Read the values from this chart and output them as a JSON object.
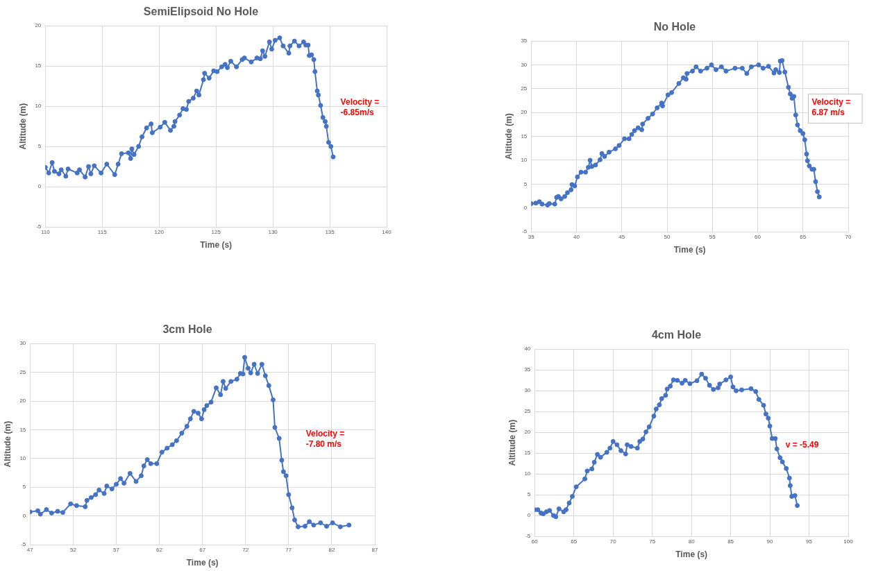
{
  "chart_data": [
    {
      "type": "line",
      "title": "SemiElipsoid No Hole",
      "xlabel": "Time (s)",
      "ylabel": "Altitude (m)",
      "xlim": [
        110,
        140
      ],
      "xticks": [
        110,
        115,
        120,
        125,
        130,
        135,
        140
      ],
      "ylim": [
        -5,
        20
      ],
      "yticks": [
        -5,
        0,
        5,
        10,
        15,
        20
      ],
      "grid": true,
      "legend": false,
      "marker": "circle",
      "line_style": "solid",
      "annotations": [
        "Velocity = -6.85m/s"
      ],
      "series": [
        {
          "color": "#4472c4",
          "x": [
            110.0,
            110.3,
            110.6,
            110.8,
            111.2,
            111.4,
            111.8,
            112.0,
            112.8,
            113.0,
            113.5,
            113.8,
            114.0,
            114.3,
            114.9,
            115.4,
            116.1,
            116.4,
            116.7,
            117.3,
            117.5,
            117.6,
            117.8,
            118.2,
            118.5,
            118.9,
            119.3,
            119.4,
            120.1,
            120.5,
            121.0,
            121.3,
            121.4,
            121.8,
            122.1,
            122.4,
            122.6,
            123.0,
            123.3,
            123.5,
            123.9,
            124.0,
            124.4,
            124.8,
            125.1,
            125.5,
            125.8,
            126.0,
            126.3,
            126.8,
            127.3,
            127.5,
            128.1,
            128.6,
            128.9,
            129.1,
            129.3,
            129.7,
            129.9,
            130.2,
            130.6,
            130.9,
            131.4,
            131.5,
            131.9,
            132.3,
            132.7,
            132.9,
            133.1,
            133.2,
            133.4,
            133.6,
            133.7,
            133.9,
            134.0,
            134.2,
            134.4,
            134.6,
            134.7,
            134.9,
            135.1,
            135.3
          ],
          "values": [
            2.4,
            1.7,
            3.0,
            1.9,
            1.6,
            2.1,
            1.3,
            2.2,
            1.7,
            2.1,
            1.2,
            2.5,
            1.6,
            2.6,
            1.7,
            2.8,
            1.5,
            2.8,
            4.1,
            4.2,
            3.5,
            4.7,
            4.0,
            5.0,
            6.2,
            7.3,
            7.8,
            6.7,
            7.4,
            8.0,
            7.0,
            7.5,
            8.1,
            8.9,
            9.7,
            9.6,
            10.6,
            11.0,
            11.9,
            11.4,
            13.3,
            14.1,
            13.5,
            14.4,
            14.3,
            14.9,
            15.2,
            14.8,
            15.6,
            14.9,
            15.8,
            16.0,
            15.5,
            16.0,
            15.9,
            16.9,
            16.2,
            18.0,
            17.1,
            18.2,
            18.5,
            17.5,
            16.6,
            17.5,
            18.1,
            17.5,
            18.0,
            17.6,
            17.6,
            16.3,
            16.4,
            15.8,
            14.3,
            11.9,
            11.4,
            10.1,
            8.6,
            8.1,
            7.5,
            5.5,
            5.0,
            3.7
          ]
        }
      ]
    },
    {
      "type": "line",
      "title": "No Hole",
      "xlabel": "Time (s)",
      "ylabel": "Altitude (m)",
      "xlim": [
        35,
        70
      ],
      "xticks": [
        35,
        40,
        45,
        50,
        55,
        60,
        65,
        70
      ],
      "ylim": [
        -5,
        35
      ],
      "yticks": [
        -5,
        0,
        5,
        10,
        15,
        20,
        25,
        30,
        35
      ],
      "grid": true,
      "legend": false,
      "marker": "circle",
      "line_style": "solid",
      "annotations": [
        "Velocity = 6.87 m/s"
      ],
      "series": [
        {
          "color": "#4472c4",
          "x": [
            35.0,
            35.5,
            35.9,
            36.2,
            36.8,
            37.0,
            37.6,
            37.8,
            38.0,
            38.3,
            38.7,
            39.0,
            39.4,
            39.5,
            39.8,
            40.1,
            40.5,
            41.0,
            41.3,
            41.5,
            41.7,
            42.1,
            42.6,
            42.8,
            43.1,
            43.6,
            44.3,
            44.7,
            45.3,
            45.8,
            46.1,
            46.4,
            46.8,
            47.2,
            47.3,
            47.9,
            48.4,
            48.9,
            49.4,
            49.5,
            50.1,
            50.5,
            51.3,
            51.8,
            52.1,
            52.2,
            52.8,
            53.2,
            53.7,
            54.4,
            54.9,
            55.4,
            56.0,
            56.5,
            57.5,
            58.3,
            58.8,
            59.3,
            60.1,
            60.6,
            61.2,
            61.8,
            62.0,
            62.4,
            62.5,
            62.7,
            63.0,
            63.4,
            63.6,
            63.8,
            64.0,
            64.2,
            64.4,
            64.7,
            65.0,
            65.2,
            65.4,
            65.5,
            65.7,
            66.0,
            66.2,
            66.4,
            66.6,
            66.8
          ],
          "values": [
            0.9,
            1.0,
            1.3,
            0.8,
            0.6,
            0.9,
            0.8,
            2.2,
            2.4,
            1.9,
            2.4,
            3.2,
            3.8,
            4.9,
            4.6,
            6.5,
            7.5,
            7.5,
            8.5,
            10.0,
            8.7,
            9.0,
            10.1,
            11.4,
            10.8,
            11.7,
            12.4,
            13.1,
            14.5,
            14.5,
            15.4,
            16.2,
            16.8,
            16.4,
            17.6,
            18.8,
            19.7,
            21.0,
            22.0,
            21.4,
            23.7,
            24.2,
            26.1,
            27.3,
            27.0,
            28.2,
            28.7,
            29.6,
            28.7,
            29.3,
            30.0,
            29.0,
            29.6,
            28.7,
            29.3,
            29.3,
            28.2,
            29.6,
            30.0,
            29.3,
            29.7,
            28.3,
            29.0,
            28.4,
            30.8,
            30.9,
            28.5,
            25.3,
            23.9,
            23.0,
            23.4,
            19.5,
            17.4,
            16.2,
            15.6,
            14.3,
            11.3,
            9.9,
            8.8,
            8.1,
            8.1,
            5.5,
            3.4,
            2.3
          ]
        }
      ]
    },
    {
      "type": "line",
      "title": "3cm Hole",
      "xlabel": "Time (s)",
      "ylabel": "Altitude (m)",
      "xlim": [
        47,
        87
      ],
      "xticks": [
        47,
        52,
        57,
        62,
        67,
        72,
        77,
        82,
        87
      ],
      "ylim": [
        -5,
        30
      ],
      "yticks": [
        -5,
        0,
        5,
        10,
        15,
        20,
        25,
        30
      ],
      "grid": true,
      "legend": false,
      "marker": "circle",
      "line_style": "solid",
      "annotations": [
        "Velocity = -7.80 m/s"
      ],
      "series": [
        {
          "color": "#4472c4",
          "x": [
            47.0,
            47.9,
            48.2,
            48.9,
            49.5,
            50.2,
            50.8,
            51.7,
            52.4,
            53.4,
            53.6,
            54.1,
            54.6,
            55.0,
            55.6,
            55.9,
            56.5,
            57.0,
            57.5,
            57.9,
            58.6,
            59.3,
            59.9,
            60.2,
            60.6,
            61.0,
            61.7,
            62.3,
            62.9,
            63.5,
            64.0,
            64.6,
            65.2,
            65.6,
            66.0,
            66.5,
            66.9,
            67.2,
            67.5,
            68.0,
            68.6,
            69.1,
            69.4,
            69.7,
            70.3,
            71.0,
            71.4,
            71.7,
            71.9,
            72.3,
            72.6,
            73.0,
            73.4,
            73.9,
            74.3,
            74.7,
            75.2,
            75.4,
            75.9,
            76.2,
            76.4,
            76.7,
            77.0,
            77.4,
            77.7,
            78.1,
            78.9,
            79.4,
            79.9,
            80.7,
            81.4,
            82.1,
            83.0,
            84.0
          ],
          "values": [
            0.7,
            0.9,
            0.3,
            1.1,
            0.5,
            0.8,
            0.6,
            2.1,
            1.8,
            1.6,
            2.7,
            3.2,
            3.7,
            4.5,
            3.9,
            5.2,
            4.7,
            5.5,
            6.5,
            5.7,
            7.4,
            6.0,
            7.0,
            8.7,
            9.8,
            9.1,
            9.1,
            11.1,
            11.8,
            12.4,
            13.1,
            14.4,
            15.6,
            16.9,
            18.2,
            17.9,
            16.9,
            18.5,
            19.2,
            19.8,
            22.3,
            21.1,
            23.4,
            22.2,
            23.4,
            23.8,
            24.8,
            24.7,
            27.6,
            25.7,
            24.9,
            26.4,
            24.8,
            26.4,
            24.4,
            22.7,
            20.2,
            15.4,
            13.5,
            9.7,
            7.7,
            7.0,
            3.7,
            1.4,
            -0.7,
            -1.9,
            -1.8,
            -1.0,
            -1.6,
            -1.2,
            -1.8,
            -1.2,
            -1.9,
            -1.6
          ]
        }
      ]
    },
    {
      "type": "line",
      "title": "4cm Hole",
      "xlabel": "Time (s)",
      "ylabel": "Altitude (m)",
      "xlim": [
        60,
        100
      ],
      "xticks": [
        60,
        65,
        70,
        75,
        80,
        85,
        90,
        95,
        100
      ],
      "ylim": [
        -5,
        40
      ],
      "yticks": [
        -5,
        0,
        5,
        10,
        15,
        20,
        25,
        30,
        35,
        40
      ],
      "grid": true,
      "legend": false,
      "marker": "circle",
      "line_style": "solid",
      "annotations": [
        "v = -5.49"
      ],
      "series": [
        {
          "color": "#4472c4",
          "x": [
            60.0,
            60.4,
            60.8,
            61.1,
            61.5,
            61.9,
            62.4,
            62.7,
            63.1,
            63.7,
            64.0,
            64.4,
            64.8,
            65.3,
            66.4,
            66.7,
            67.3,
            67.6,
            68.0,
            68.4,
            69.2,
            69.6,
            70.0,
            70.5,
            71.0,
            71.6,
            71.8,
            72.3,
            73.1,
            73.4,
            73.8,
            74.2,
            74.6,
            75.2,
            75.5,
            75.9,
            76.2,
            76.7,
            76.9,
            77.3,
            77.7,
            78.2,
            78.8,
            79.2,
            79.8,
            80.7,
            81.3,
            81.8,
            82.3,
            82.8,
            83.4,
            83.6,
            84.4,
            85.0,
            85.3,
            85.7,
            86.4,
            87.6,
            88.2,
            88.6,
            89.2,
            89.5,
            89.8,
            90.0,
            90.3,
            90.7,
            90.9,
            91.3,
            91.6,
            92.1,
            92.5,
            92.6,
            92.8,
            93.2,
            93.5
          ],
          "values": [
            1.4,
            1.4,
            0.6,
            0.4,
            0.9,
            1.2,
            0.0,
            -0.3,
            1.6,
            0.9,
            1.4,
            3.0,
            4.6,
            6.9,
            8.8,
            10.7,
            11.2,
            12.8,
            14.7,
            14.0,
            15.2,
            16.2,
            17.8,
            17.0,
            15.6,
            14.8,
            17.0,
            16.6,
            16.2,
            17.8,
            18.4,
            20.1,
            21.3,
            23.9,
            25.6,
            26.6,
            28.1,
            28.9,
            30.4,
            31.1,
            32.6,
            32.5,
            31.8,
            32.5,
            31.7,
            32.4,
            34.0,
            33.0,
            31.3,
            30.3,
            30.7,
            31.6,
            32.6,
            33.3,
            30.9,
            30.0,
            30.2,
            30.5,
            29.8,
            27.9,
            26.5,
            24.4,
            23.4,
            21.5,
            18.5,
            18.5,
            16.0,
            13.9,
            12.9,
            11.3,
            9.0,
            7.2,
            4.6,
            4.8,
            2.4
          ]
        }
      ]
    }
  ]
}
